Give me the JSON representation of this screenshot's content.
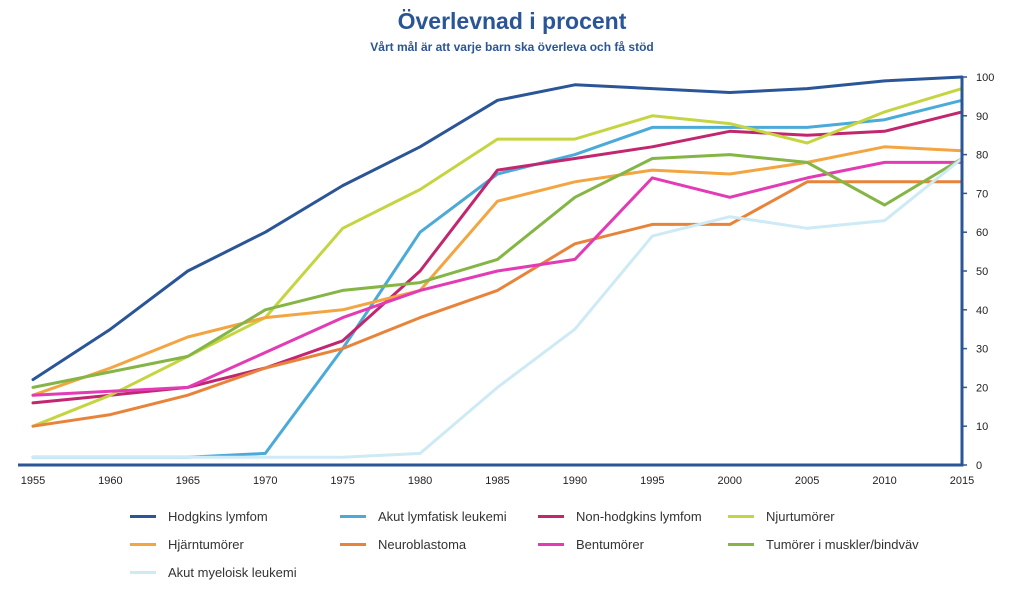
{
  "chart_data": {
    "type": "line",
    "title": "Överlevnad i procent",
    "subtitle": "Vårt mål är att varje barn ska överleva och få stöd",
    "xlabel": "",
    "ylabel": "",
    "x": [
      1955,
      1960,
      1965,
      1970,
      1975,
      1980,
      1985,
      1990,
      1995,
      2000,
      2005,
      2010,
      2015
    ],
    "x_tick_labels": [
      "1955",
      "1960",
      "1965",
      "1970",
      "1975",
      "1980",
      "1985",
      "1990",
      "1995",
      "2000",
      "2005",
      "2010",
      "2015"
    ],
    "ylim": [
      0,
      100
    ],
    "y_ticks": [
      "0",
      "10",
      "20",
      "30",
      "40",
      "50",
      "60",
      "70",
      "80",
      "90",
      "100"
    ],
    "y_axis_position": "right",
    "grid": false,
    "legend_position": "bottom",
    "series": [
      {
        "name": "Hodgkins lymfom",
        "color": "#2a5597",
        "values": [
          22,
          35,
          50,
          60,
          72,
          82,
          94,
          98,
          97,
          96,
          97,
          99,
          100
        ]
      },
      {
        "name": "Akut lymfatisk leukemi",
        "color": "#4baad8",
        "values": [
          2,
          2,
          2,
          3,
          30,
          60,
          75,
          80,
          87,
          87,
          87,
          89,
          94
        ]
      },
      {
        "name": "Non-hodgkins lymfom",
        "color": "#c2266e",
        "values": [
          16,
          18,
          20,
          25,
          32,
          50,
          76,
          79,
          82,
          86,
          85,
          86,
          91
        ]
      },
      {
        "name": "Njurtumörer",
        "color": "#c5d542",
        "values": [
          10,
          18,
          28,
          38,
          61,
          71,
          84,
          84,
          90,
          88,
          83,
          91,
          97
        ]
      },
      {
        "name": "Hjärntumörer",
        "color": "#f2a541",
        "values": [
          18,
          25,
          33,
          38,
          40,
          45,
          68,
          73,
          76,
          75,
          78,
          82,
          81
        ]
      },
      {
        "name": "Neuroblastoma",
        "color": "#e8843a",
        "values": [
          10,
          13,
          18,
          25,
          30,
          38,
          45,
          57,
          62,
          62,
          73,
          73,
          73
        ]
      },
      {
        "name": "Bentumörer",
        "color": "#e23bb5",
        "values": [
          18,
          19,
          20,
          29,
          38,
          45,
          50,
          53,
          74,
          69,
          74,
          78,
          78
        ]
      },
      {
        "name": "Tumörer i muskler/bindväv",
        "color": "#84b545",
        "values": [
          20,
          24,
          28,
          40,
          45,
          47,
          53,
          69,
          79,
          80,
          78,
          67,
          79
        ]
      },
      {
        "name": "Akut myeloisk leukemi",
        "color": "#cdeaf5",
        "values": [
          2,
          2,
          2,
          2,
          2,
          3,
          20,
          35,
          59,
          64,
          61,
          63,
          79
        ]
      }
    ],
    "axis_color": "#2a5597"
  }
}
